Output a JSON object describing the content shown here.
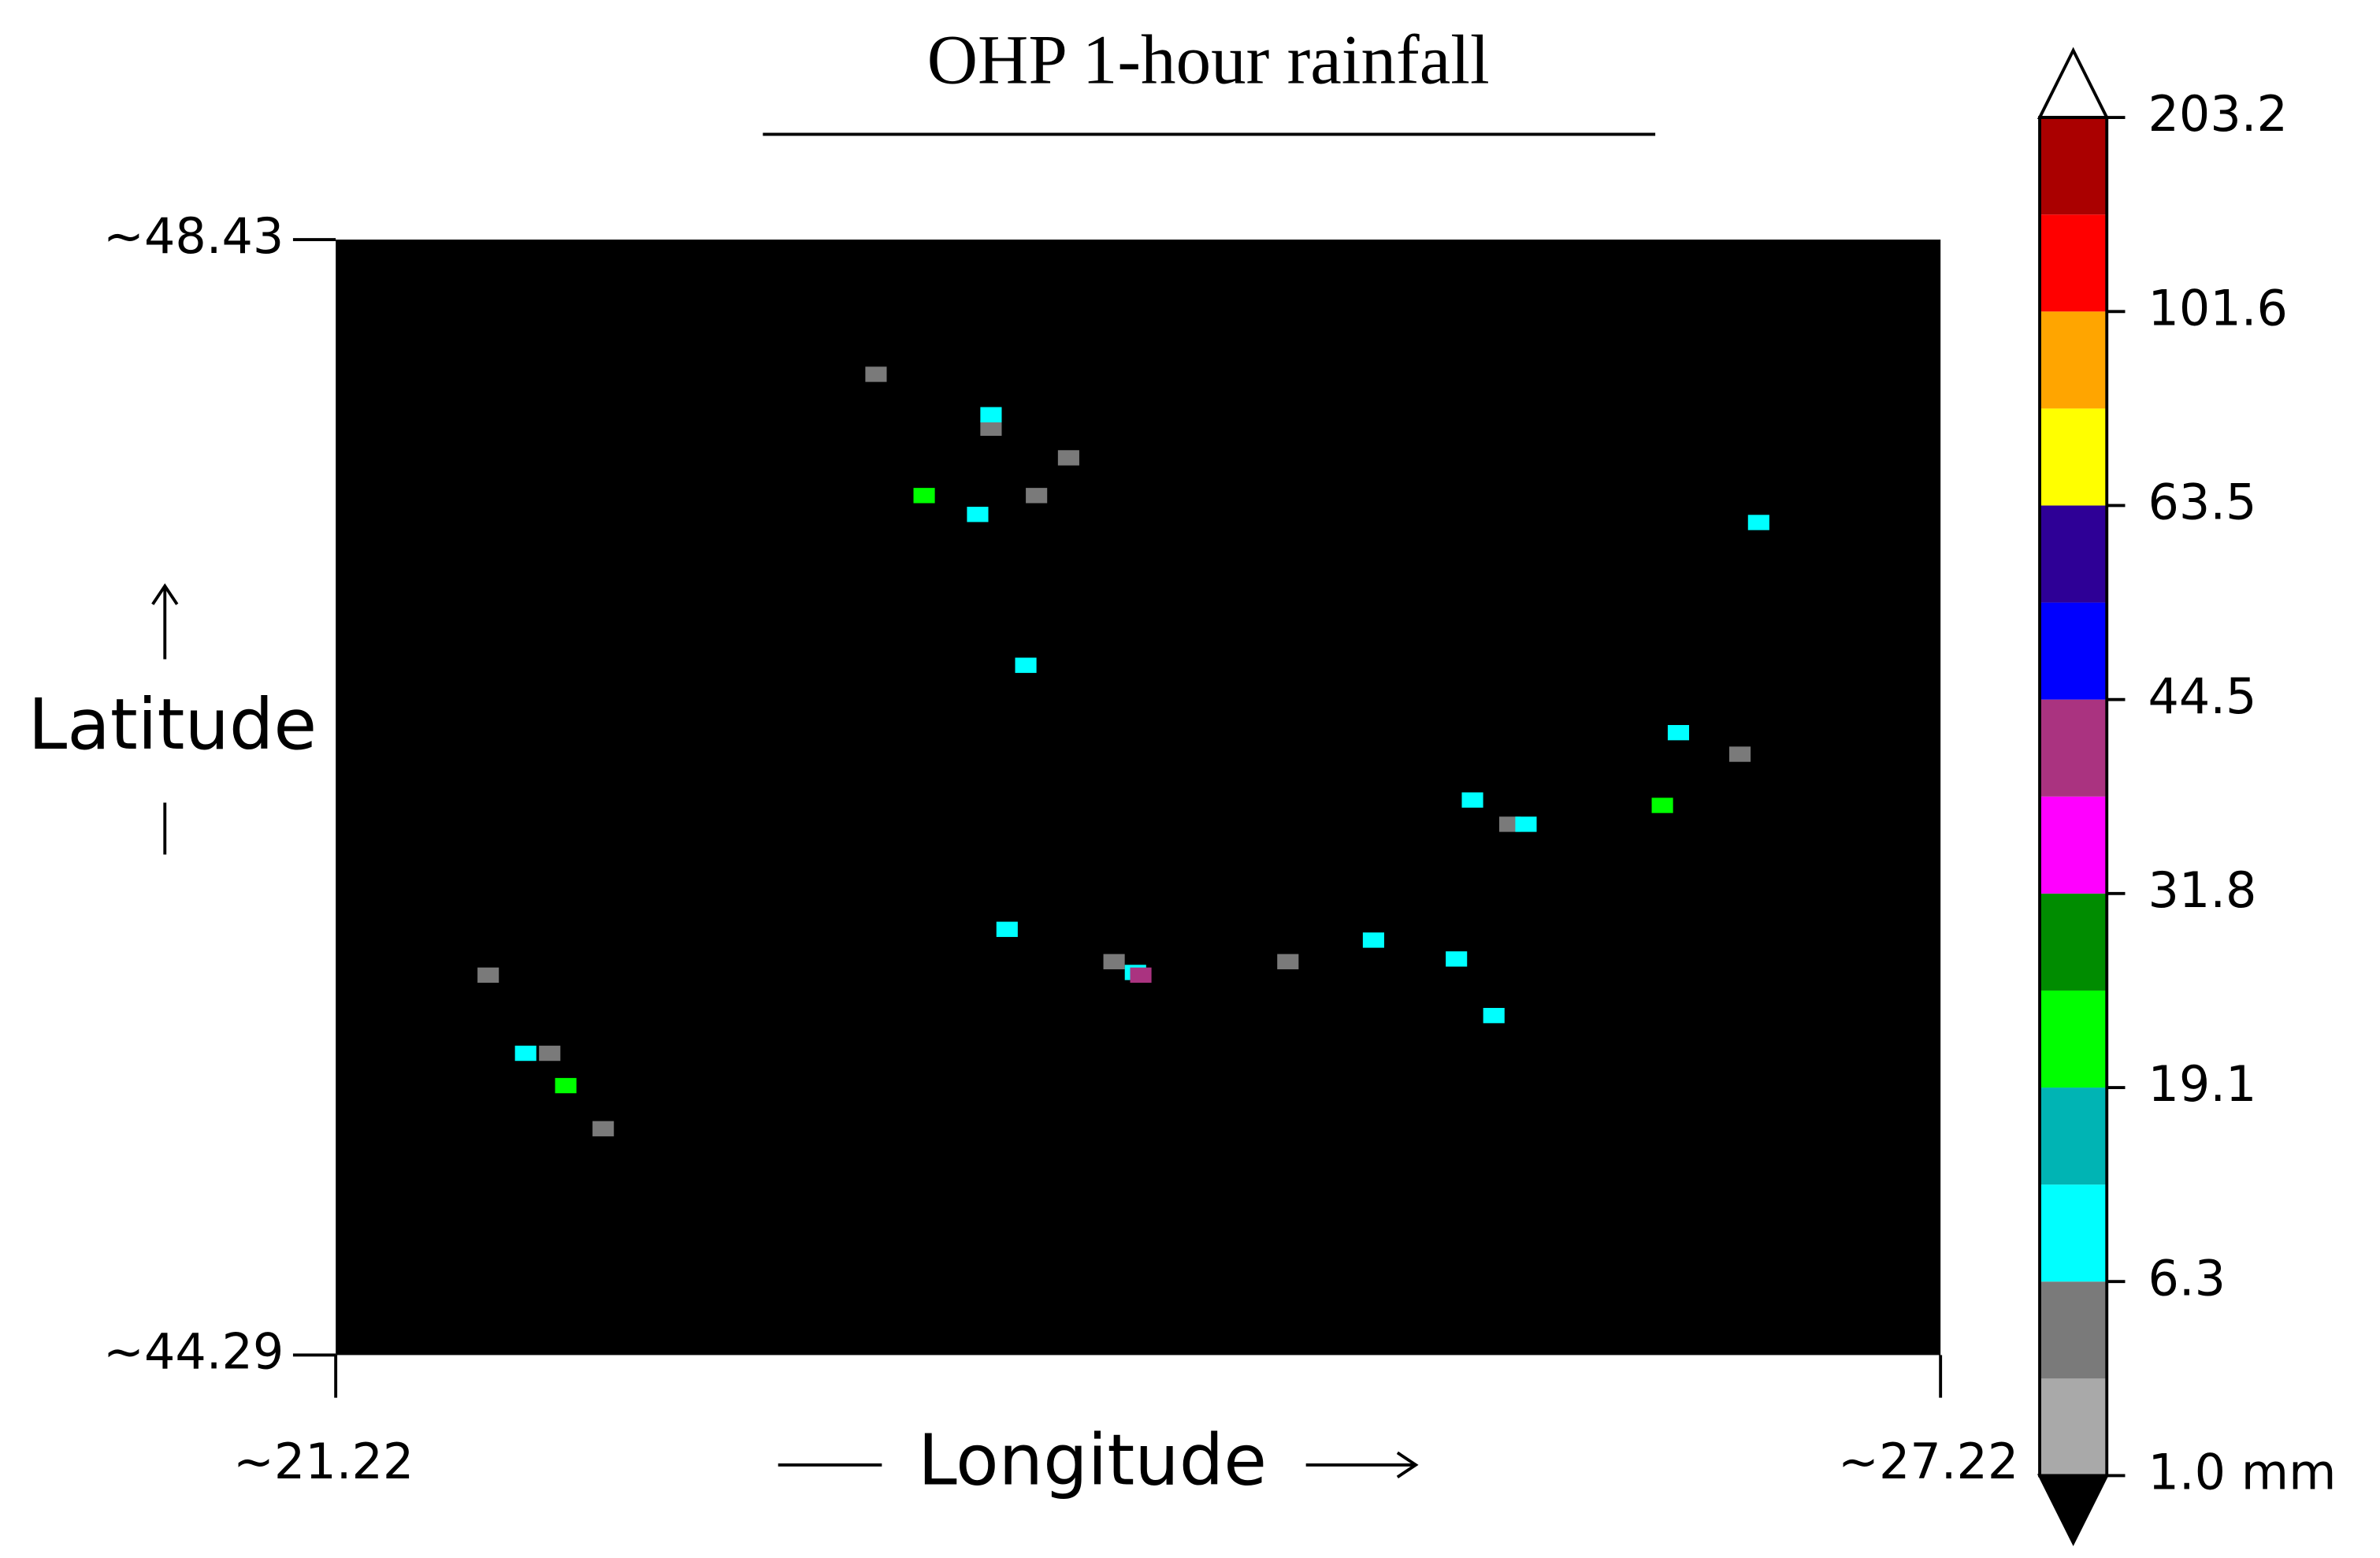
{
  "chart_data": {
    "type": "raster-map",
    "title": "OHP 1-hour rainfall",
    "xlabel": "Longitude",
    "ylabel": "Latitude",
    "xlim": [
      21.22,
      27.22
    ],
    "ylim": [
      44.29,
      48.43
    ],
    "xticks": [
      {
        "value": 21.22,
        "label": "~21.22"
      },
      {
        "value": 27.22,
        "label": "~27.22"
      }
    ],
    "yticks": [
      {
        "value": 48.43,
        "label": "~48.43"
      },
      {
        "value": 44.29,
        "label": "~44.29"
      }
    ],
    "background": "#000000",
    "cells": [
      {
        "lon": 23.24,
        "lat": 47.93,
        "value": 3,
        "color": "#7a7a7a"
      },
      {
        "lon": 23.67,
        "lat": 47.73,
        "value": 3,
        "color": "#7a7a7a"
      },
      {
        "lon": 23.84,
        "lat": 47.48,
        "value": 3,
        "color": "#7a7a7a"
      },
      {
        "lon": 23.96,
        "lat": 47.62,
        "value": 3,
        "color": "#7a7a7a"
      },
      {
        "lon": 24.13,
        "lat": 45.75,
        "value": 3,
        "color": "#7a7a7a"
      },
      {
        "lon": 24.78,
        "lat": 45.75,
        "value": 3,
        "color": "#7a7a7a"
      },
      {
        "lon": 25.61,
        "lat": 46.26,
        "value": 3,
        "color": "#7a7a7a"
      },
      {
        "lon": 26.47,
        "lat": 46.52,
        "value": 3,
        "color": "#7a7a7a"
      },
      {
        "lon": 22.02,
        "lat": 45.41,
        "value": 3,
        "color": "#7a7a7a"
      },
      {
        "lon": 22.22,
        "lat": 45.13,
        "value": 3,
        "color": "#7a7a7a"
      },
      {
        "lon": 21.79,
        "lat": 45.7,
        "value": 3,
        "color": "#7a7a7a"
      },
      {
        "lon": 23.67,
        "lat": 47.78,
        "value": 8,
        "color": "#00ffff"
      },
      {
        "lon": 23.62,
        "lat": 47.41,
        "value": 8,
        "color": "#00ffff"
      },
      {
        "lon": 23.73,
        "lat": 45.87,
        "value": 8,
        "color": "#00ffff"
      },
      {
        "lon": 24.21,
        "lat": 45.71,
        "value": 8,
        "color": "#00ffff"
      },
      {
        "lon": 25.47,
        "lat": 46.35,
        "value": 8,
        "color": "#00ffff"
      },
      {
        "lon": 25.67,
        "lat": 46.26,
        "value": 8,
        "color": "#00ffff"
      },
      {
        "lon": 26.24,
        "lat": 46.6,
        "value": 8,
        "color": "#00ffff"
      },
      {
        "lon": 25.41,
        "lat": 45.76,
        "value": 8,
        "color": "#00ffff"
      },
      {
        "lon": 25.55,
        "lat": 45.55,
        "value": 8,
        "color": "#00ffff"
      },
      {
        "lon": 21.93,
        "lat": 45.41,
        "value": 8,
        "color": "#00ffff"
      },
      {
        "lon": 25.1,
        "lat": 45.83,
        "value": 8,
        "color": "#00ffff"
      },
      {
        "lon": 26.54,
        "lat": 47.38,
        "value": 8,
        "color": "#00ffff"
      },
      {
        "lon": 23.8,
        "lat": 46.85,
        "value": 8,
        "color": "#00ffff"
      },
      {
        "lon": 23.42,
        "lat": 47.48,
        "value": 25,
        "color": "#00ff00"
      },
      {
        "lon": 22.08,
        "lat": 45.29,
        "value": 25,
        "color": "#00ff00"
      },
      {
        "lon": 26.18,
        "lat": 46.33,
        "value": 25,
        "color": "#00ff00"
      },
      {
        "lon": 24.23,
        "lat": 45.7,
        "value": 40,
        "color": "#aa3380"
      }
    ],
    "colorbar": {
      "colors": [
        "#a9a9a9",
        "#7a7a7a",
        "#00ffff",
        "#00b4b4",
        "#00ff00",
        "#008c00",
        "#ff00ff",
        "#aa3380",
        "#0000ff",
        "#2e0096",
        "#ffff00",
        "#ffa500",
        "#ff0000",
        "#aa0000"
      ],
      "over_color": "#ffffff",
      "under_color": "#000000",
      "ticks": [
        {
          "value": 1.0,
          "label": "1.0 mm"
        },
        6.3,
        19.1,
        31.8,
        44.5,
        63.5,
        101.6,
        203.2
      ]
    }
  }
}
